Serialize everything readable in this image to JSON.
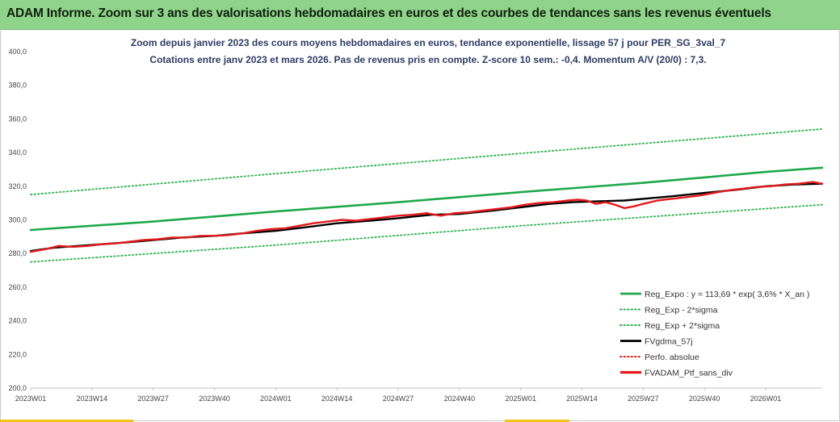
{
  "header": {
    "title": "ADAM Informe. Zoom sur 3 ans des valorisations hebdomadaires en euros et des courbes de tendances sans les revenus éventuels"
  },
  "chart": {
    "subtitle_line1": "Zoom depuis janvier 2023 des cours moyens hebdomadaires  en euros, tendance exponentielle, lissage 57 j pour PER_SG_3val_7",
    "subtitle_line2": "Cotations  entre janv 2023 et mars 2026. Pas de revenus pris en compte. Z-score 10 sem.: -0,4. Momentum A/V (20/0) : 7,3."
  },
  "colors": {
    "trend": "#1ea84a",
    "sigma": "#2bb24c",
    "gdma": "#000000",
    "perf": "#e02020",
    "ptf": "#e31a1c",
    "header_bg": "#8fd48a",
    "accent": "#f2c419"
  },
  "chart_data": {
    "type": "line",
    "ylim": [
      200,
      400
    ],
    "yticks": [
      "200,0",
      "220,0",
      "240,0",
      "260,0",
      "280,0",
      "300,0",
      "320,0",
      "340,0",
      "360,0",
      "380,0",
      "400,0"
    ],
    "xticks": [
      "2023W01",
      "2023W14",
      "2023W27",
      "2023W40",
      "2024W01",
      "2024W14",
      "2024W27",
      "2024W40",
      "2025W01",
      "2025W14",
      "2025W27",
      "2025W40",
      "2026W01"
    ],
    "weeks_total": 168,
    "legend_position": "bottom-right",
    "series": [
      {
        "name": "Reg_Expo : y = 113,69 * exp( 3,6% *  X_an )",
        "style": "solid",
        "color": "#1ea84a",
        "x": [
          0,
          26,
          52,
          78,
          104,
          130,
          156,
          168
        ],
        "y": [
          294,
          299,
          305,
          310.5,
          316.5,
          322,
          328.5,
          331
        ]
      },
      {
        "name": "Reg_Exp - 2*sigma",
        "style": "dotted",
        "color": "#2bb24c",
        "x": [
          0,
          52,
          104,
          168
        ],
        "y": [
          275,
          285,
          296.5,
          309
        ]
      },
      {
        "name": "Reg_Exp + 2*sigma",
        "style": "dotted",
        "color": "#2bb24c",
        "x": [
          0,
          52,
          104,
          168
        ],
        "y": [
          315,
          327.5,
          339.5,
          354
        ]
      },
      {
        "name": "FVgdma_57j",
        "style": "solid",
        "color": "#000000",
        "x": [
          0,
          5,
          10,
          15,
          20,
          26,
          32,
          39,
          45,
          52,
          58,
          65,
          72,
          78,
          85,
          91,
          98,
          104,
          110,
          115,
          120,
          126,
          130,
          136,
          143,
          150,
          156,
          162,
          168
        ],
        "y": [
          281.5,
          283.5,
          284.5,
          285.5,
          286.5,
          288,
          289.5,
          290.5,
          292,
          293.5,
          295.5,
          298,
          299.5,
          301,
          303,
          303.5,
          305.5,
          307.5,
          309.5,
          310.5,
          311,
          311.5,
          312.5,
          314,
          316,
          318,
          320,
          321,
          321.5
        ]
      },
      {
        "name": "Perfo. absolue",
        "style": "dotted",
        "color": "#e02020",
        "x": [],
        "y": []
      },
      {
        "name": "FVADAM_Ptf_sans_div",
        "style": "solid",
        "color": "#e31a1c",
        "x": [
          0,
          3,
          6,
          9,
          12,
          15,
          18,
          21,
          24,
          27,
          30,
          33,
          36,
          39,
          42,
          45,
          48,
          51,
          54,
          57,
          60,
          63,
          66,
          69,
          72,
          75,
          78,
          81,
          84,
          87,
          90,
          93,
          96,
          99,
          102,
          105,
          108,
          111,
          114,
          116,
          118,
          120,
          122,
          124,
          126,
          128,
          130,
          133,
          136,
          139,
          142,
          145,
          148,
          151,
          154,
          157,
          160,
          163,
          166,
          168
        ],
        "y": [
          281,
          282.5,
          284.5,
          284,
          284.5,
          285.5,
          286,
          287,
          288,
          288.5,
          289.5,
          289.5,
          290.5,
          290.5,
          291,
          292,
          293.5,
          294.5,
          295,
          296.5,
          298,
          299,
          300,
          299.5,
          300.5,
          301.5,
          302.5,
          303,
          304,
          302.5,
          304,
          304.5,
          305.5,
          306.5,
          307.5,
          309,
          310,
          310.5,
          311.5,
          312,
          311.5,
          309.5,
          310.5,
          309,
          307,
          308,
          309.5,
          311.5,
          312.5,
          313.5,
          314.5,
          316,
          317.5,
          318.5,
          319.5,
          320,
          321,
          321.5,
          322.5,
          321.5
        ]
      }
    ]
  }
}
